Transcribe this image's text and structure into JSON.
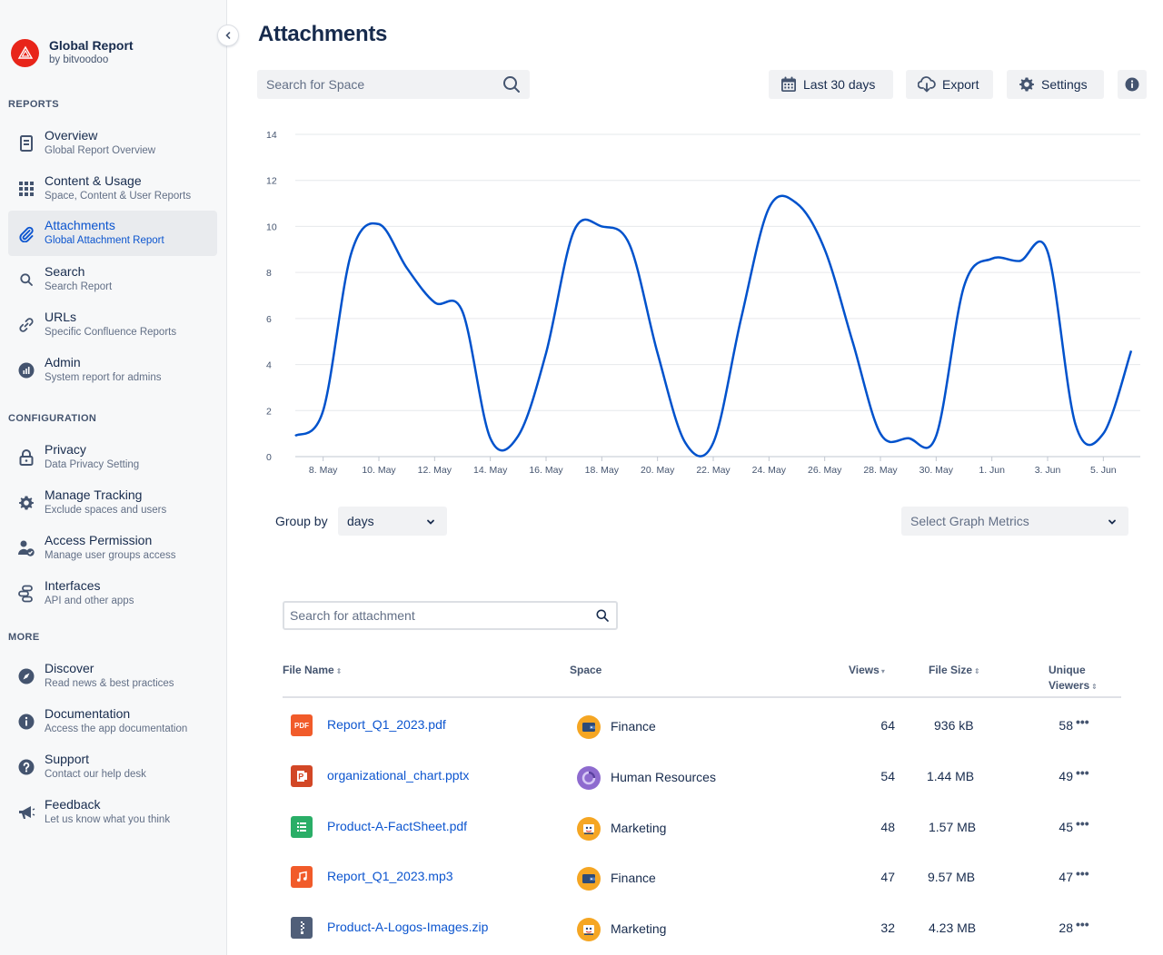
{
  "app": {
    "title": "Global Report",
    "subtitle": "by bitvoodoo"
  },
  "sidebar": {
    "sections": {
      "reports": "REPORTS",
      "configuration": "CONFIGURATION",
      "more": "MORE"
    },
    "items": [
      {
        "label": "Overview",
        "desc": "Global Report Overview",
        "icon": "document-icon"
      },
      {
        "label": "Content & Usage",
        "desc": "Space, Content & User Reports",
        "icon": "grid-icon"
      },
      {
        "label": "Attachments",
        "desc": "Global Attachment Report",
        "icon": "paperclip-icon",
        "active": true
      },
      {
        "label": "Search",
        "desc": "Search Report",
        "icon": "search-icon"
      },
      {
        "label": "URLs",
        "desc": "Specific Confluence Reports",
        "icon": "link-icon"
      },
      {
        "label": "Admin",
        "desc": "System report for admins",
        "icon": "admin-chart-icon"
      },
      {
        "label": "Privacy",
        "desc": "Data Privacy Setting",
        "icon": "lock-icon"
      },
      {
        "label": "Manage Tracking",
        "desc": "Exclude spaces and users",
        "icon": "gear-icon"
      },
      {
        "label": "Access Permission",
        "desc": "Manage user groups access",
        "icon": "user-check-icon"
      },
      {
        "label": "Interfaces",
        "desc": "API and other apps",
        "icon": "interfaces-icon"
      },
      {
        "label": "Discover",
        "desc": "Read news & best practices",
        "icon": "compass-icon"
      },
      {
        "label": "Documentation",
        "desc": "Access the app documentation",
        "icon": "info-icon"
      },
      {
        "label": "Support",
        "desc": "Contact our help desk",
        "icon": "question-icon"
      },
      {
        "label": "Feedback",
        "desc": "Let us know what you think",
        "icon": "megaphone-icon"
      }
    ]
  },
  "main": {
    "title": "Attachments",
    "space_search": {
      "placeholder": "Search for Space"
    },
    "toolbar": {
      "date_range": "Last 30 days",
      "export": "Export",
      "settings": "Settings"
    },
    "group_by": {
      "label": "Group by",
      "value": "days"
    },
    "metrics": {
      "placeholder": "Select Graph Metrics"
    },
    "attachment_search": {
      "placeholder": "Search for attachment"
    },
    "table": {
      "headers": {
        "file_name": "File Name",
        "space": "Space",
        "views": "Views",
        "file_size": "File Size",
        "unique_viewers_1": "Unique",
        "unique_viewers_2": "Viewers"
      },
      "rows": [
        {
          "file": "Report_Q1_2023.pdf",
          "type": "pdf-file-icon",
          "space": "Finance",
          "space_icon": "wallet-icon",
          "views": "64",
          "size": "936 kB",
          "unique": "58"
        },
        {
          "file": "organizational_chart.pptx",
          "type": "pptx-file-icon",
          "space": "Human Resources",
          "space_icon": "hr-icon",
          "views": "54",
          "size": "1.44 MB",
          "unique": "49"
        },
        {
          "file": "Product-A-FactSheet.pdf",
          "type": "spreadsheet-file-icon",
          "space": "Marketing",
          "space_icon": "marketing-icon",
          "views": "48",
          "size": "1.57 MB",
          "unique": "45"
        },
        {
          "file": "Report_Q1_2023.mp3",
          "type": "audio-file-icon",
          "space": "Finance",
          "space_icon": "wallet-icon",
          "views": "47",
          "size": "9.57 MB",
          "unique": "47"
        },
        {
          "file": "Product-A-Logos-Images.zip",
          "type": "zip-file-icon",
          "space": "Marketing",
          "space_icon": "marketing-icon",
          "views": "32",
          "size": "4.23 MB",
          "unique": "28"
        }
      ],
      "more_label": "•••"
    }
  },
  "colors": {
    "accent": "#0c55cf",
    "line": "#0052cc",
    "pdf": "#f15b2a",
    "pptx": "#d24726",
    "sheet": "#2aae67",
    "audio": "#f15b2a",
    "zip": "#505f79"
  },
  "chart_data": {
    "type": "line",
    "x_tick_labels": [
      "8. May",
      "10. May",
      "12. May",
      "14. May",
      "16. May",
      "18. May",
      "20. May",
      "22. May",
      "24. May",
      "26. May",
      "28. May",
      "30. May",
      "1. Jun",
      "3. Jun",
      "5. Jun"
    ],
    "y_ticks": [
      0,
      2,
      4,
      6,
      8,
      10,
      12,
      14
    ],
    "ylim": [
      0,
      14
    ],
    "grid": true,
    "series": [
      {
        "x": [
          "7. May",
          "8. May",
          "9. May",
          "10. May",
          "11. May",
          "12. May",
          "13. May",
          "14. May",
          "15. May",
          "16. May",
          "17. May",
          "18. May",
          "19. May",
          "20. May",
          "21. May",
          "22. May",
          "23. May",
          "24. May",
          "25. May",
          "26. May",
          "27. May",
          "28. May",
          "29. May",
          "30. May",
          "31. May",
          "1. Jun",
          "2. Jun",
          "3. Jun",
          "4. Jun",
          "5. Jun",
          "6. Jun"
        ],
        "y": [
          0.9,
          2.0,
          8.8,
          10.1,
          8.2,
          6.7,
          6.3,
          0.8,
          0.9,
          4.5,
          9.8,
          10.0,
          9.2,
          4.5,
          0.6,
          0.6,
          6.0,
          10.8,
          11.0,
          9.0,
          5.0,
          1.0,
          0.8,
          0.9,
          7.4,
          8.6,
          8.5,
          8.9,
          1.4,
          1.0,
          4.6
        ]
      }
    ]
  }
}
